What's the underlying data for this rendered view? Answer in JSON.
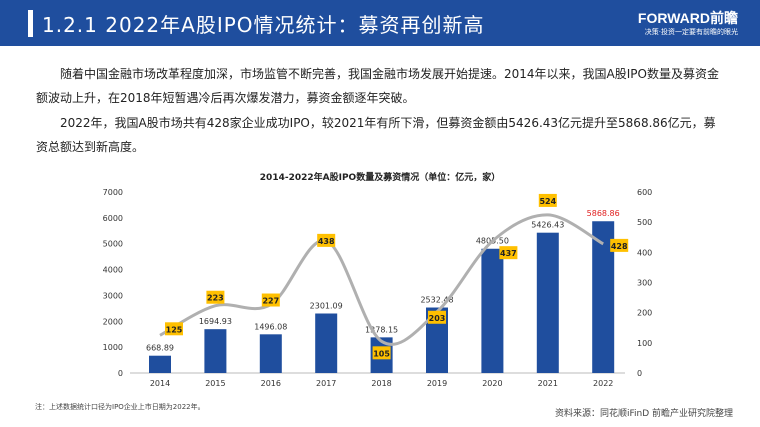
{
  "header": {
    "title": "1.2.1 2022年A股IPO情况统计：募资再创新高",
    "logo": "FORWARD前瞻",
    "slogan": "决策·投资一定要有前瞻的眼光"
  },
  "paragraphs": [
    "随着中国金融市场改革程度加深，市场监管不断完善，我国金融市场发展开始提速。2014年以来，我国A股IPO数量及募资金额波动上升，在2018年短暂遇冷后再次爆发潜力，募资金额逐年突破。",
    "2022年，我国A股市场共有428家企业成功IPO，较2021年有所下滑，但募资金额由5426.43亿元提升至5868.86亿元，募资总额达到新高度。"
  ],
  "note": "注：上述数据统计口径为IPO企业上市日期为2022年。",
  "source": "资料来源：同花顺iFinD 前瞻产业研究院整理",
  "chart_data": {
    "type": "bar+line",
    "title": "2014-2022年A股IPO数量及募资情况（单位：亿元，家）",
    "categories": [
      "2014",
      "2015",
      "2016",
      "2017",
      "2018",
      "2019",
      "2020",
      "2021",
      "2022"
    ],
    "series": [
      {
        "type": "bar",
        "axis": "left",
        "values": [
          668.89,
          1694.93,
          1496.08,
          2301.09,
          1378.15,
          2532.48,
          4805.5,
          5426.43,
          5868.86
        ],
        "labels": [
          "668.89",
          "1694.93",
          "1496.08",
          "2301.09",
          "1378.15",
          "2532.48",
          "4805.50",
          "5426.43",
          "5868.86"
        ]
      },
      {
        "type": "line",
        "axis": "right",
        "values": [
          125,
          223,
          227,
          438,
          105,
          203,
          437,
          524,
          428
        ]
      }
    ],
    "ylim_left": [
      0,
      7000
    ],
    "yticks_left": [
      0,
      1000,
      2000,
      3000,
      4000,
      5000,
      6000,
      7000
    ],
    "ylim_right": [
      0,
      600
    ],
    "yticks_right": [
      0,
      100,
      200,
      300,
      400,
      500,
      600
    ],
    "colors": {
      "bar": "#1f4e9e",
      "line": "#b0b0b0",
      "label_box": "#ffc000",
      "highlight": "#e02020"
    }
  }
}
